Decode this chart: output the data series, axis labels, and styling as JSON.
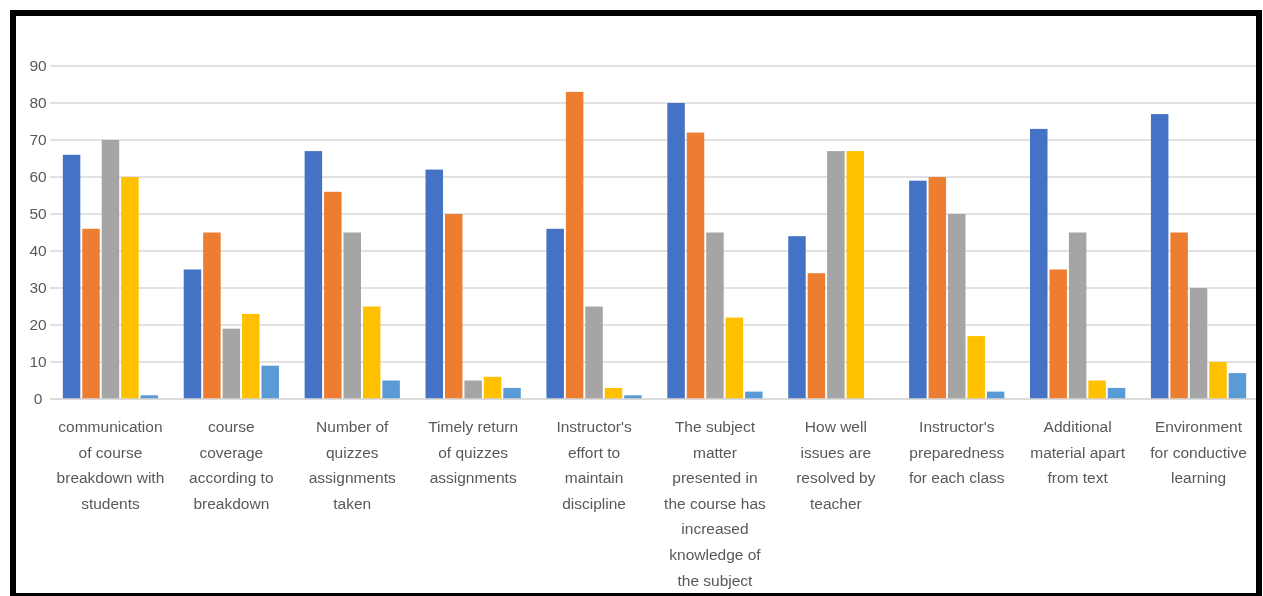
{
  "chart_data": {
    "type": "bar",
    "categories": [
      "communication of course breakdown with students",
      "course coverage according to breakdown",
      "Number of quizzes assignments taken",
      "Timely return of quizzes assignments",
      "Instructor's effort to maintain discipline",
      "The subject matter presented in the course has increased knowledge of the subject",
      "How well issues are resolved by teacher",
      "Instructor's preparedness for each class",
      "Additional material apart from text",
      "Environment for conductive learning"
    ],
    "series": [
      {
        "color": "#4472c4",
        "values": [
          66,
          35,
          67,
          62,
          46,
          80,
          44,
          59,
          73,
          77
        ]
      },
      {
        "color": "#ed7d31",
        "values": [
          46,
          45,
          56,
          50,
          83,
          72,
          34,
          60,
          35,
          45
        ]
      },
      {
        "color": "#a5a5a5",
        "values": [
          70,
          19,
          45,
          5,
          25,
          45,
          67,
          50,
          45,
          30
        ]
      },
      {
        "color": "#ffc000",
        "values": [
          60,
          23,
          25,
          6,
          3,
          22,
          67,
          17,
          5,
          10
        ]
      },
      {
        "color": "#5b9bd5",
        "values": [
          1,
          9,
          5,
          3,
          1,
          2,
          0,
          2,
          3,
          7
        ]
      }
    ],
    "ylim": [
      0,
      90
    ],
    "yticks": [
      0,
      10,
      20,
      30,
      40,
      50,
      60,
      70,
      80,
      90
    ],
    "grid": "y"
  }
}
